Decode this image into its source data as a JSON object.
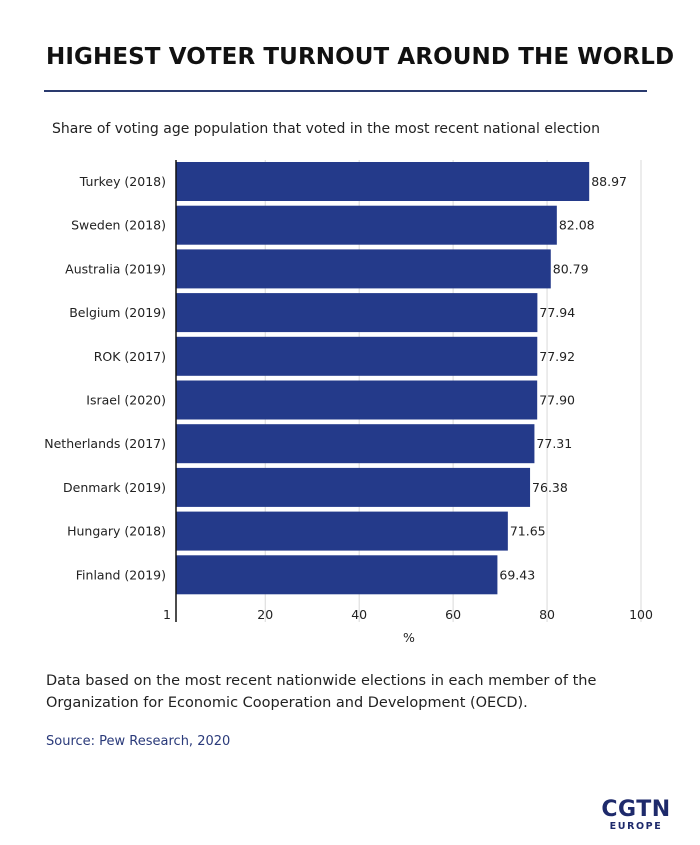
{
  "header": {
    "title": "HIGHEST VOTER TURNOUT AROUND THE WORLD",
    "subtitle": "Share of voting age population that voted in the most recent national election"
  },
  "chart_data": {
    "type": "bar",
    "orientation": "horizontal",
    "categories": [
      "Turkey (2018)",
      "Sweden (2018)",
      "Australia (2019)",
      "Belgium (2019)",
      "ROK (2017)",
      "Israel (2020)",
      "Netherlands (2017)",
      "Denmark (2019)",
      "Hungary (2018)",
      "Finland (2019)"
    ],
    "values": [
      88.97,
      82.08,
      80.79,
      77.94,
      77.92,
      77.9,
      77.31,
      76.38,
      71.65,
      69.43
    ],
    "value_labels": [
      "88.97",
      "82.08",
      "80.79",
      "77.94",
      "77.92",
      "77.90",
      "77.31",
      "76.38",
      "71.65",
      "69.43"
    ],
    "xlabel": "%",
    "ylabel": "",
    "xlim": [
      1,
      100
    ],
    "xticks": [
      1,
      20,
      40,
      60,
      80,
      100
    ],
    "grid": "vertical",
    "bar_color": "#243a8a"
  },
  "footer": {
    "note": "Data based on the most recent nationwide elections in each member of the Organization for Economic Cooperation and Development (OECD).",
    "source": "Source: Pew Research, 2020"
  },
  "logo": {
    "main": "CGTN",
    "sub": "EUROPE"
  }
}
